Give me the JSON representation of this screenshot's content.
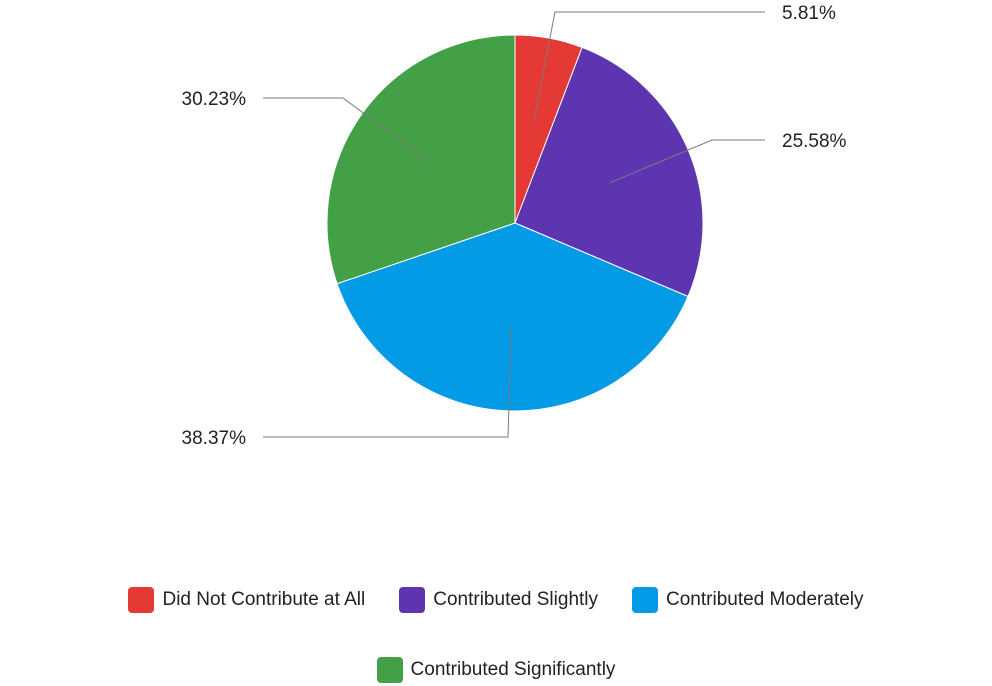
{
  "chart_data": {
    "type": "pie",
    "categories": [
      "Did Not Contribute at All",
      "Contributed Slightly",
      "Contributed Moderately",
      "Contributed Significantly"
    ],
    "values": [
      5.81,
      25.58,
      38.37,
      30.23
    ],
    "labels": [
      "5.81%",
      "25.58%",
      "38.37%",
      "30.23%"
    ],
    "colors": [
      "#e53935",
      "#5e35b1",
      "#039be5",
      "#43a047"
    ],
    "start_angle": "12 o'clock",
    "direction": "clockwise",
    "legend": "bottom"
  }
}
